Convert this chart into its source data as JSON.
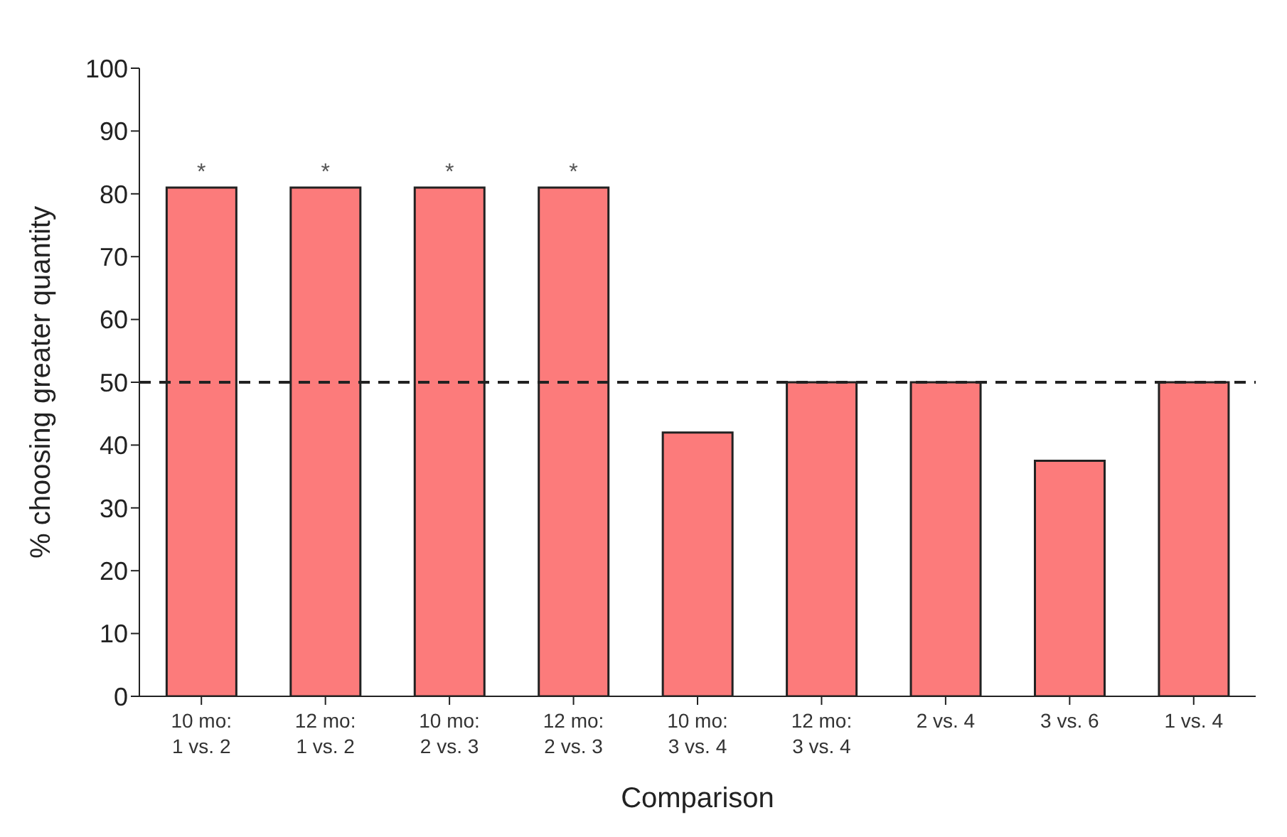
{
  "chart_data": {
    "type": "bar",
    "xlabel": "Comparison",
    "ylabel": "% choosing greater quantity",
    "categories": [
      "10 mo:\n1 vs. 2",
      "12 mo:\n1 vs. 2",
      "10 mo:\n2 vs. 3",
      "12 mo:\n2 vs. 3",
      "10 mo:\n3 vs. 4",
      "12 mo:\n3 vs. 4",
      "2 vs. 4",
      "3 vs. 6",
      "1 vs. 4"
    ],
    "values": [
      81,
      81,
      81,
      81,
      42,
      50,
      50,
      37.5,
      50
    ],
    "color": "#fc7b7b",
    "ylim": [
      0,
      100
    ],
    "yticks": [
      0,
      10,
      20,
      30,
      40,
      50,
      60,
      70,
      80,
      90,
      100
    ],
    "ref_lines": [
      {
        "axis": "y",
        "value": 50,
        "line_style": "dashed",
        "color": "#222222"
      }
    ],
    "annotations": [
      {
        "text": "*",
        "x": "10 mo:\n1 vs. 2",
        "y": 81
      },
      {
        "text": "*",
        "x": "12 mo:\n1 vs. 2",
        "y": 81
      },
      {
        "text": "*",
        "x": "10 mo:\n2 vs. 3",
        "y": 81
      },
      {
        "text": "*",
        "x": "12 mo:\n2 vs. 3",
        "y": 81
      }
    ],
    "grid": false,
    "legend": false
  }
}
